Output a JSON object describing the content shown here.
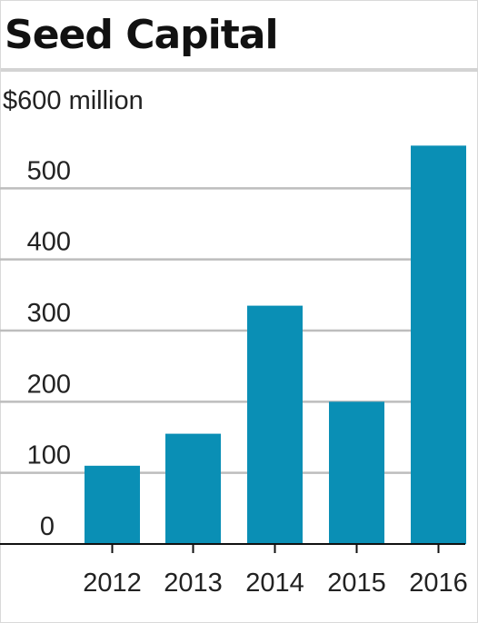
{
  "chart_data": {
    "type": "bar",
    "title": "Seed Capital",
    "unit_label": "$600 million",
    "categories": [
      "2012",
      "2013",
      "2014",
      "2015",
      "2016"
    ],
    "values": [
      110,
      155,
      335,
      200,
      560
    ],
    "ylim": [
      0,
      600
    ],
    "y_ticks": [
      0,
      100,
      200,
      300,
      400,
      500
    ],
    "grid": true,
    "legend": "none",
    "bar_color": "#0a8fb5"
  }
}
